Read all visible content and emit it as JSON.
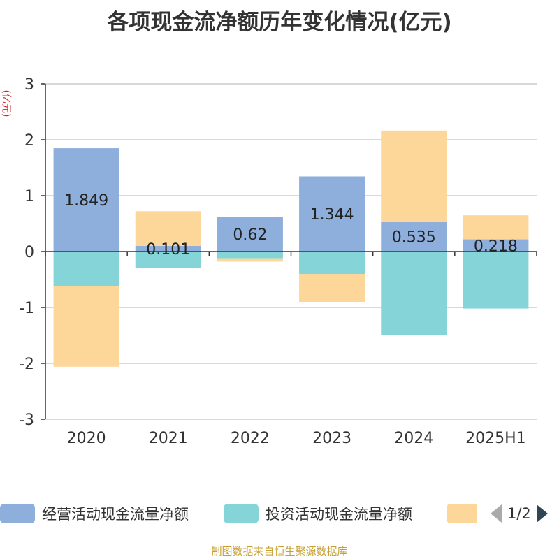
{
  "title": "各项现金流净额历年变化情况(亿元)",
  "ylabel": "(亿元)",
  "footer": "制图数据来自恒生聚源数据库",
  "legend": {
    "page_indicator": "1/2"
  },
  "colors": {
    "operating": "#8eaedb",
    "investing": "#85d5d8",
    "financing": "#fdd799",
    "axis": "#333333",
    "grid": "#cccccc"
  },
  "chart_data": {
    "type": "bar",
    "stacked": true,
    "categories": [
      "2020",
      "2021",
      "2022",
      "2023",
      "2024",
      "2025H1"
    ],
    "ylim": [
      -3,
      3
    ],
    "yticks": [
      "3",
      "2",
      "1",
      "0",
      "-1",
      "-2",
      "-3"
    ],
    "ylabel": "(亿元)",
    "grid": true,
    "legend_position": "bottom",
    "series": [
      {
        "name": "经营活动现金流量净额",
        "values": [
          1.849,
          0.101,
          0.62,
          1.344,
          0.535,
          0.218
        ],
        "labels": [
          "1.849",
          "0.101",
          "0.62",
          "1.344",
          "0.535",
          "0.218"
        ]
      },
      {
        "name": "投资活动现金流量净额",
        "values": [
          -0.62,
          -0.29,
          -0.12,
          -0.4,
          -1.49,
          -1.02
        ]
      },
      {
        "name": "",
        "values": [
          -1.44,
          0.62,
          -0.06,
          -0.5,
          1.63,
          0.43
        ]
      }
    ]
  }
}
